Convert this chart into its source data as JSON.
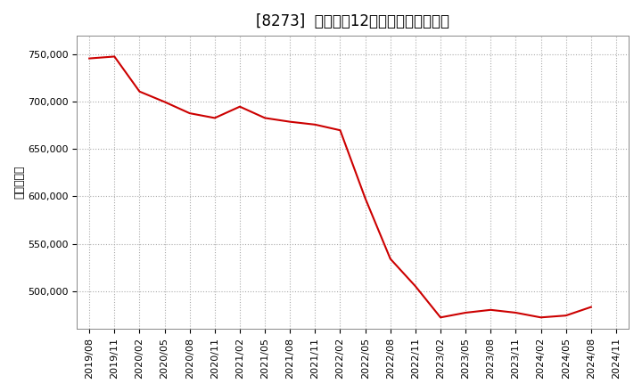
{
  "title": "[8273]  売上高の12か月移動合計の推移",
  "ylabel": "（百万円）",
  "line_color": "#cc0000",
  "background_color": "#ffffff",
  "plot_bg_color": "#ffffff",
  "grid_color": "#aaaaaa",
  "dates": [
    "2019/08",
    "2019/11",
    "2020/02",
    "2020/05",
    "2020/08",
    "2020/11",
    "2021/02",
    "2021/05",
    "2021/08",
    "2021/11",
    "2022/02",
    "2022/05",
    "2022/08",
    "2022/11",
    "2023/02",
    "2023/05",
    "2023/08",
    "2023/11",
    "2024/02",
    "2024/05",
    "2024/08",
    "2024/11"
  ],
  "values": [
    746000,
    748000,
    711000,
    700000,
    688000,
    683000,
    695000,
    683000,
    679000,
    676000,
    670000,
    598000,
    534000,
    505000,
    472000,
    477000,
    480000,
    477000,
    472000,
    474000,
    483000,
    null
  ],
  "ylim": [
    460000,
    770000
  ],
  "yticks": [
    500000,
    550000,
    600000,
    650000,
    700000,
    750000
  ],
  "title_fontsize": 12,
  "tick_fontsize": 8,
  "ylabel_fontsize": 9
}
